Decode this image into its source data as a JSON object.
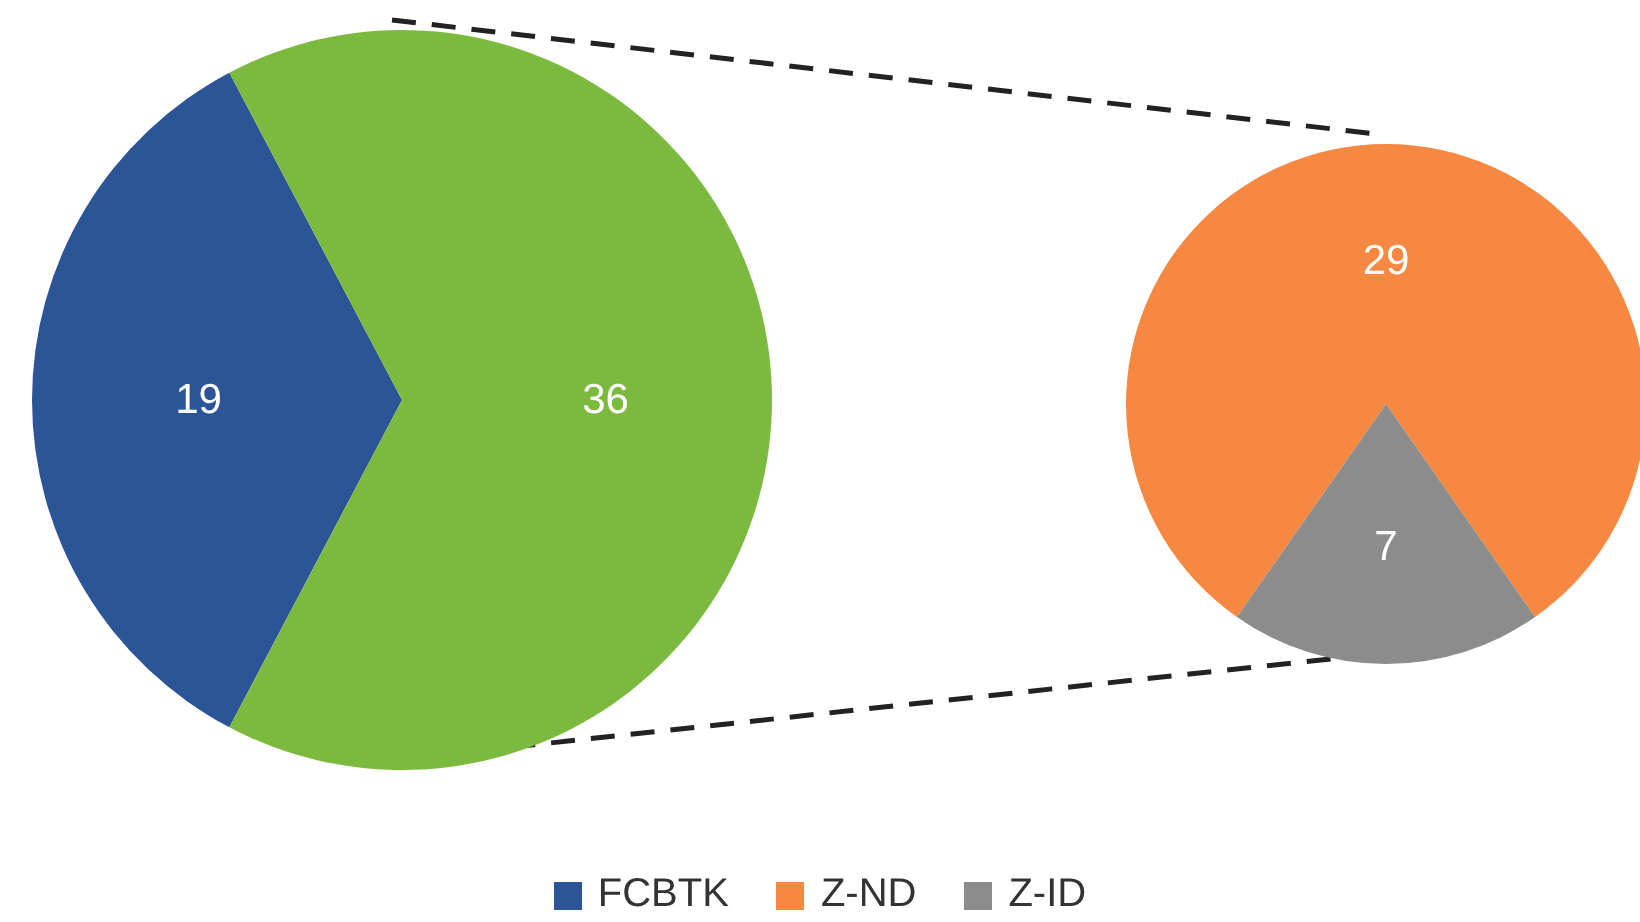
{
  "chart_data": [
    {
      "type": "pie",
      "categories": [
        "FCBTK",
        null
      ],
      "values": [
        19,
        36
      ],
      "colors": [
        "#2b5597",
        "#7cba3f"
      ],
      "data_labels": true,
      "legend": "bottom"
    },
    {
      "type": "pie",
      "categories": [
        "Z-ND",
        "Z-ID"
      ],
      "values": [
        29,
        7
      ],
      "colors": [
        "#f68842",
        "#8c8c8c"
      ],
      "data_labels": true,
      "legend": "bottom"
    }
  ]
}
